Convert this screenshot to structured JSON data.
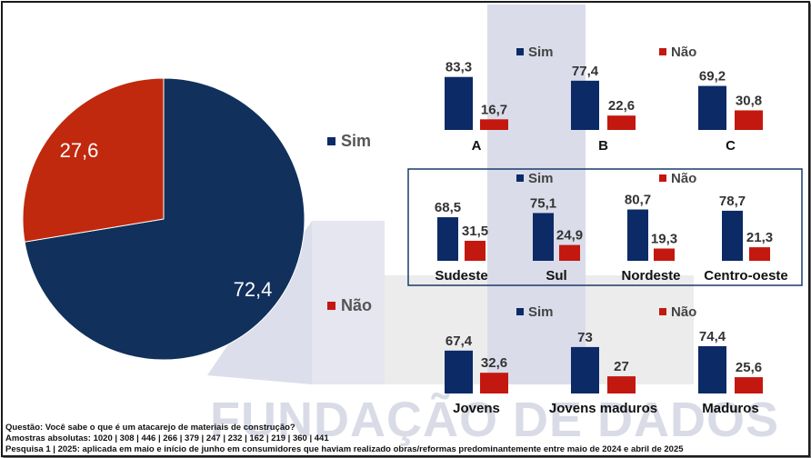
{
  "watermark": "FUNDAÇÃO DE DADOS",
  "colors": {
    "sim": "#0b2a66",
    "nao": "#c3180f",
    "pie_sim": "#11305c",
    "pie_nao": "#c0290d",
    "frame": "#1a3a6b"
  },
  "legend": {
    "sim": "Sim",
    "nao": "Não"
  },
  "footer": {
    "question": "Questão: Você sabe o que é um atacarejo de materiais de construção?",
    "samples": "Amostras absolutas: 1020 | 308 | 446 | 266 | 379 | 247 | 232 | 162 | 219 | 360 | 441",
    "survey": "Pesquisa 1 | 2025: aplicada em maio e início de junho em consumidores que haviam realizado obras/reformas predominantemente entre maio de 2024 e abril de 2025"
  },
  "chart_data": [
    {
      "type": "pie",
      "series": [
        {
          "name": "Sim",
          "value": 72.4,
          "label": "72,4"
        },
        {
          "name": "Não",
          "value": 27.6,
          "label": "27,6"
        }
      ]
    },
    {
      "type": "bar",
      "categories": [
        "A",
        "B",
        "C"
      ],
      "series": [
        {
          "name": "Sim",
          "values": [
            83.3,
            77.4,
            69.2
          ],
          "labels": [
            "83,3",
            "77,4",
            "69,2"
          ]
        },
        {
          "name": "Não",
          "values": [
            16.7,
            22.6,
            30.8
          ],
          "labels": [
            "16,7",
            "22,6",
            "30,8"
          ]
        }
      ]
    },
    {
      "type": "bar",
      "categories": [
        "Sudeste",
        "Sul",
        "Nordeste",
        "Centro-oeste"
      ],
      "series": [
        {
          "name": "Sim",
          "values": [
            68.5,
            75.1,
            80.7,
            78.7
          ],
          "labels": [
            "68,5",
            "75,1",
            "80,7",
            "78,7"
          ]
        },
        {
          "name": "Não",
          "values": [
            31.5,
            24.9,
            19.3,
            21.3
          ],
          "labels": [
            "31,5",
            "24,9",
            "19,3",
            "21,3"
          ]
        }
      ]
    },
    {
      "type": "bar",
      "categories": [
        "Jovens",
        "Jovens maduros",
        "Maduros"
      ],
      "series": [
        {
          "name": "Sim",
          "values": [
            67.4,
            73,
            74.4
          ],
          "labels": [
            "67,4",
            "73",
            "74,4"
          ]
        },
        {
          "name": "Não",
          "values": [
            32.6,
            27,
            25.6
          ],
          "labels": [
            "32,6",
            "27",
            "25,6"
          ]
        }
      ]
    }
  ]
}
